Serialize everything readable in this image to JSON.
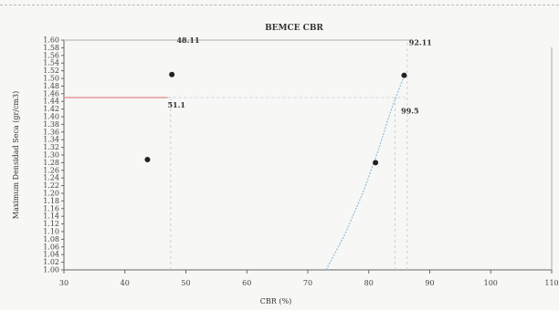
{
  "chart_data": {
    "type": "scatter",
    "title": "BEMCE CBR",
    "xlabel": "CBR (%)",
    "ylabel": "Maximum Densidad Seca (gr/cm3)",
    "xlim": [
      30,
      110
    ],
    "ylim": [
      1.0,
      1.6
    ],
    "x_ticks": [
      "30",
      "40",
      "50",
      "60",
      "70",
      "80",
      "90",
      "100",
      "110"
    ],
    "y_tick_step": 0.02,
    "grid": false,
    "points": [
      {
        "x": 43.7,
        "y": 1.288
      },
      {
        "x": 47.7,
        "y": 1.51
      },
      {
        "x": 81.1,
        "y": 1.28
      },
      {
        "x": 85.8,
        "y": 1.508
      }
    ],
    "fit_curve": {
      "color": "#8fbfd9",
      "x": [
        73,
        76,
        79,
        81.5,
        83.5,
        85.8
      ],
      "y": [
        1.0,
        1.09,
        1.2,
        1.31,
        1.41,
        1.508
      ]
    },
    "reference_lines": [
      {
        "axis": "y",
        "value": 1.45,
        "x_from": 30,
        "x_to": 47,
        "color": "#e39b9b",
        "style": "solid"
      },
      {
        "axis": "y",
        "value": 1.45,
        "x_from": 47,
        "x_to": 86,
        "color": "#c9d8e3",
        "style": "dashed"
      },
      {
        "axis": "y",
        "value": 1.6,
        "x_from": 30,
        "x_to": 87,
        "color": "#c7c7c7",
        "style": "solid"
      },
      {
        "axis": "x",
        "value": 47.5,
        "y_from": 1.0,
        "y_to": 1.45,
        "color": "#d0d0d0",
        "style": "dashed"
      },
      {
        "axis": "x",
        "value": 84.3,
        "y_from": 1.0,
        "y_to": 1.45,
        "color": "#d0d0d0",
        "style": "dashed"
      },
      {
        "axis": "x",
        "value": 86.3,
        "y_from": 1.0,
        "y_to": 1.6,
        "color": "#d0d0d0",
        "style": "dashed"
      }
    ],
    "annotations": [
      {
        "text": "48.11",
        "x": 48.5,
        "y": 1.6
      },
      {
        "text": "51.1",
        "x": 47.0,
        "y": 1.431
      },
      {
        "text": "99.5",
        "x": 85.3,
        "y": 1.415
      },
      {
        "text": "92.11",
        "x": 86.6,
        "y": 1.594
      }
    ]
  }
}
